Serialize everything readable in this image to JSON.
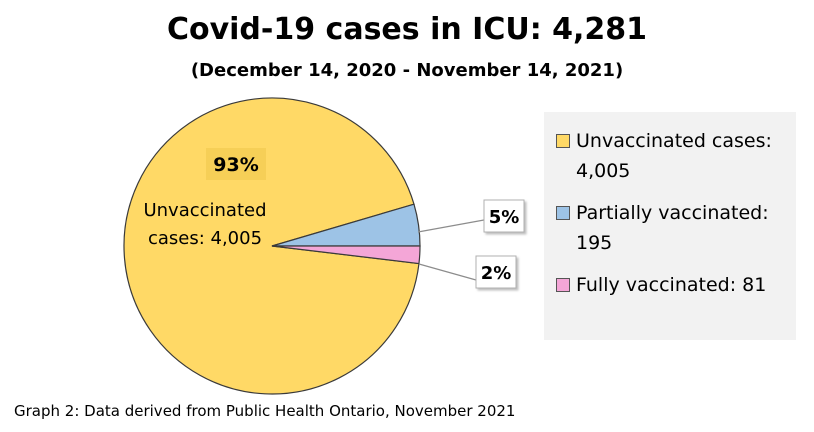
{
  "chart_data": {
    "type": "pie",
    "title": "Covid-19 cases in ICU: 4,281",
    "subtitle": "(December 14, 2020 - November 14, 2021)",
    "categories": [
      "Unvaccinated cases",
      "Partially vaccinated",
      "Fully vaccinated"
    ],
    "values": [
      4005,
      195,
      81
    ],
    "percent_labels": [
      "93%",
      "5%",
      "2%"
    ],
    "inner_label": [
      "Unvaccinated",
      "cases: 4,005"
    ],
    "colors": [
      "#ffd966",
      "#9dc3e6",
      "#f4a6d7"
    ],
    "legend_position": "right",
    "legend": [
      {
        "text": "Unvaccinated cases:",
        "value": "4,005"
      },
      {
        "text": "Partially vaccinated:",
        "value": "195"
      },
      {
        "text": "Fully vaccinated: 81",
        "value": ""
      }
    ]
  },
  "caption": "Graph 2: Data derived from Public Health Ontario, November 2021"
}
